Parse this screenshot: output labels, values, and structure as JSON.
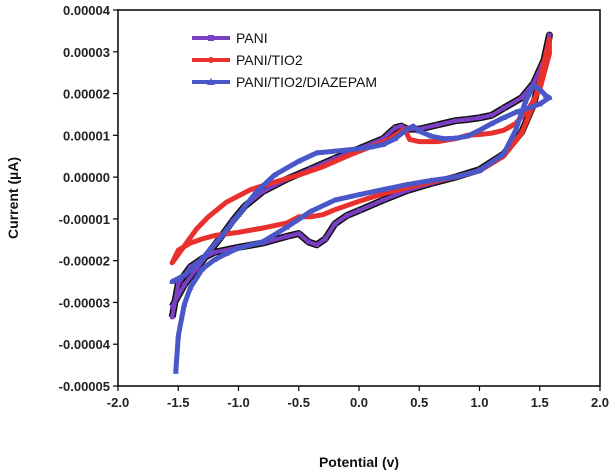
{
  "chart_data": {
    "type": "line",
    "title": "",
    "xlabel": "Potential (v)",
    "ylabel": "Current (µA)",
    "xlim": [
      -2.0,
      2.0
    ],
    "ylim": [
      -5e-05,
      4e-05
    ],
    "x_ticks": [
      -2.0,
      -1.5,
      -1.0,
      -0.5,
      0.0,
      0.5,
      1.0,
      1.5,
      2.0
    ],
    "x_tick_labels": [
      "-2.0",
      "-1.5",
      "-1.0",
      "-0.5",
      "0.0",
      "0.5",
      "1.0",
      "1.5",
      "2.0"
    ],
    "y_ticks": [
      -5e-05,
      -4e-05,
      -3e-05,
      -2e-05,
      -1e-05,
      0,
      1e-05,
      2e-05,
      3e-05,
      4e-05
    ],
    "y_tick_labels": [
      "-0.00005",
      "-0.00004",
      "-0.00003",
      "-0.00002",
      "-0.00001",
      "0.00000",
      "0.00001",
      "0.00002",
      "0.00003",
      "0.00004"
    ],
    "grid": false,
    "legend_position": "top-center",
    "series": [
      {
        "name": "PANI",
        "color": "#7b3fc4",
        "marker": "square",
        "points": [
          [
            -1.55,
            -3.35e-05
          ],
          [
            -1.5,
            -2.55e-05
          ],
          [
            -1.4,
            -2.15e-05
          ],
          [
            -1.3,
            -1.95e-05
          ],
          [
            -1.2,
            -1.8e-05
          ],
          [
            -1.0,
            -1.68e-05
          ],
          [
            -0.8,
            -1.58e-05
          ],
          [
            -0.6,
            -1.42e-05
          ],
          [
            -0.5,
            -1.35e-05
          ],
          [
            -0.42,
            -1.55e-05
          ],
          [
            -0.35,
            -1.62e-05
          ],
          [
            -0.28,
            -1.48e-05
          ],
          [
            -0.2,
            -1.12e-05
          ],
          [
            -0.1,
            -9.2e-06
          ],
          [
            0.0,
            -8e-06
          ],
          [
            0.2,
            -5.5e-06
          ],
          [
            0.4,
            -3.2e-06
          ],
          [
            0.6,
            -1.5e-06
          ],
          [
            0.8,
            0.0
          ],
          [
            1.0,
            1.8e-06
          ],
          [
            1.2,
            5.5e-06
          ],
          [
            1.35,
            1.08e-05
          ],
          [
            1.45,
            1.75e-05
          ],
          [
            1.52,
            2.6e-05
          ],
          [
            1.58,
            3.4e-05
          ],
          [
            1.55,
            2.9e-05
          ],
          [
            1.45,
            2.25e-05
          ],
          [
            1.35,
            1.9e-05
          ],
          [
            1.2,
            1.65e-05
          ],
          [
            1.1,
            1.48e-05
          ],
          [
            1.0,
            1.42e-05
          ],
          [
            0.9,
            1.38e-05
          ],
          [
            0.8,
            1.35e-05
          ],
          [
            0.65,
            1.25e-05
          ],
          [
            0.5,
            1.15e-05
          ],
          [
            0.4,
            1.15e-05
          ],
          [
            0.35,
            1.22e-05
          ],
          [
            0.3,
            1.18e-05
          ],
          [
            0.2,
            9.2e-06
          ],
          [
            0.0,
            6.8e-06
          ],
          [
            -0.2,
            4.5e-06
          ],
          [
            -0.4,
            2e-06
          ],
          [
            -0.6,
            -5e-07
          ],
          [
            -0.8,
            -3.5e-06
          ],
          [
            -0.95,
            -7e-06
          ],
          [
            -1.05,
            -1.05e-05
          ],
          [
            -1.15,
            -1.45e-05
          ],
          [
            -1.25,
            -1.82e-05
          ],
          [
            -1.35,
            -2.2e-05
          ],
          [
            -1.45,
            -2.58e-05
          ],
          [
            -1.55,
            -3.1e-05
          ]
        ]
      },
      {
        "name": "PANI/TIO2",
        "color": "#e8302c",
        "marker": "circle",
        "points": [
          [
            -1.55,
            -2.05e-05
          ],
          [
            -1.5,
            -1.75e-05
          ],
          [
            -1.4,
            -1.58e-05
          ],
          [
            -1.3,
            -1.48e-05
          ],
          [
            -1.2,
            -1.4e-05
          ],
          [
            -1.0,
            -1.32e-05
          ],
          [
            -0.8,
            -1.22e-05
          ],
          [
            -0.6,
            -1.1e-05
          ],
          [
            -0.5,
            -9.5e-06
          ],
          [
            -0.4,
            -9.5e-06
          ],
          [
            -0.3,
            -9e-06
          ],
          [
            -0.2,
            -7.8e-06
          ],
          [
            0.0,
            -5.8e-06
          ],
          [
            0.2,
            -4e-06
          ],
          [
            0.4,
            -2.5e-06
          ],
          [
            0.6,
            -1.2e-06
          ],
          [
            0.8,
            0.0
          ],
          [
            1.0,
            1.5e-06
          ],
          [
            1.2,
            5e-06
          ],
          [
            1.35,
            1.05e-05
          ],
          [
            1.45,
            1.75e-05
          ],
          [
            1.52,
            2.55e-05
          ],
          [
            1.58,
            3.3e-05
          ],
          [
            1.58,
            2.95e-05
          ],
          [
            1.5,
            2.1e-05
          ],
          [
            1.4,
            1.6e-05
          ],
          [
            1.3,
            1.28e-05
          ],
          [
            1.2,
            1.12e-05
          ],
          [
            1.1,
            1.05e-05
          ],
          [
            1.0,
            1.02e-05
          ],
          [
            0.9,
            1e-05
          ],
          [
            0.8,
            9.2e-06
          ],
          [
            0.65,
            8.5e-06
          ],
          [
            0.5,
            8.5e-06
          ],
          [
            0.42,
            9e-06
          ],
          [
            0.38,
            1.15e-05
          ],
          [
            0.32,
            1.05e-05
          ],
          [
            0.25,
            9e-06
          ],
          [
            0.1,
            7.3e-06
          ],
          [
            -0.1,
            5e-06
          ],
          [
            -0.3,
            2.5e-06
          ],
          [
            -0.5,
            5e-07
          ],
          [
            -0.7,
            -1.2e-06
          ],
          [
            -0.9,
            -3e-06
          ],
          [
            -1.1,
            -6e-06
          ],
          [
            -1.25,
            -9.5e-06
          ],
          [
            -1.35,
            -1.25e-05
          ],
          [
            -1.45,
            -1.65e-05
          ],
          [
            -1.55,
            -2.05e-05
          ]
        ]
      },
      {
        "name": "PANI/TIO2/DIAZEPAM",
        "color": "#4a57c8",
        "marker": "triangle",
        "points": [
          [
            -1.52,
            -4.65e-05
          ],
          [
            -1.5,
            -3.8e-05
          ],
          [
            -1.45,
            -3.05e-05
          ],
          [
            -1.4,
            -2.65e-05
          ],
          [
            -1.3,
            -2.2e-05
          ],
          [
            -1.2,
            -1.98e-05
          ],
          [
            -1.1,
            -1.83e-05
          ],
          [
            -1.0,
            -1.7e-05
          ],
          [
            -0.8,
            -1.55e-05
          ],
          [
            -0.6,
            -1.2e-05
          ],
          [
            -0.4,
            -8.2e-06
          ],
          [
            -0.2,
            -5.5e-06
          ],
          [
            0.0,
            -4.2e-06
          ],
          [
            0.2,
            -3e-06
          ],
          [
            0.4,
            -1.8e-06
          ],
          [
            0.6,
            -8e-07
          ],
          [
            0.8,
            0.0
          ],
          [
            1.0,
            1.5e-06
          ],
          [
            1.2,
            5.5e-06
          ],
          [
            1.3,
            1.12e-05
          ],
          [
            1.38,
            1.8e-05
          ],
          [
            1.45,
            2.2e-05
          ],
          [
            1.5,
            2.1e-05
          ],
          [
            1.55,
            1.95e-05
          ],
          [
            1.58,
            1.9e-05
          ],
          [
            1.5,
            1.75e-05
          ],
          [
            1.4,
            1.65e-05
          ],
          [
            1.3,
            1.55e-05
          ],
          [
            1.2,
            1.42e-05
          ],
          [
            1.1,
            1.28e-05
          ],
          [
            1.0,
            1.12e-05
          ],
          [
            0.9,
            9.8e-06
          ],
          [
            0.8,
            9.3e-06
          ],
          [
            0.7,
            9.2e-06
          ],
          [
            0.6,
            9.8e-06
          ],
          [
            0.5,
            1.1e-05
          ],
          [
            0.45,
            1.22e-05
          ],
          [
            0.4,
            1.15e-05
          ],
          [
            0.3,
            9.2e-06
          ],
          [
            0.2,
            7.8e-06
          ],
          [
            0.1,
            7.2e-06
          ],
          [
            0.0,
            6.8e-06
          ],
          [
            -0.2,
            6.2e-06
          ],
          [
            -0.35,
            5.8e-06
          ],
          [
            -0.5,
            3.8e-06
          ],
          [
            -0.7,
            5e-07
          ],
          [
            -0.85,
            -3.5e-06
          ],
          [
            -1.0,
            -9e-06
          ],
          [
            -1.15,
            -1.45e-05
          ],
          [
            -1.3,
            -1.95e-05
          ],
          [
            -1.45,
            -2.35e-05
          ],
          [
            -1.55,
            -2.5e-05
          ]
        ]
      }
    ]
  }
}
